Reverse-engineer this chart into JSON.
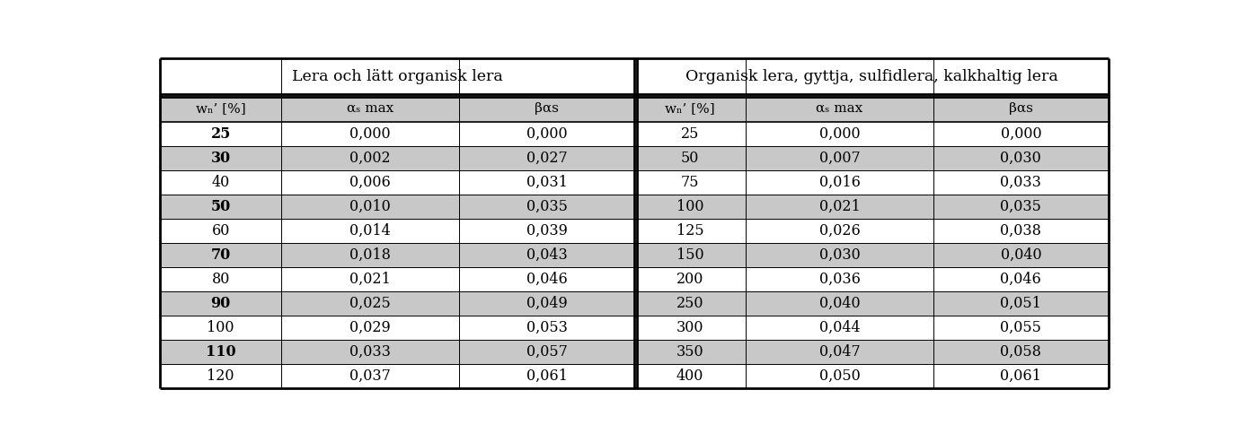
{
  "title_left": "Lera och lätt organisk lera",
  "title_right": "Organisk lera, gyttja, sulfidlera, kalkhaltig lera",
  "col_headers_left": [
    "wₙ’ [%]",
    "αₛ max",
    "βαs"
  ],
  "col_headers_right": [
    "wₙ’ [%]",
    "αₛ max",
    "βαs"
  ],
  "data_left": [
    [
      "25",
      "0,000",
      "0,000"
    ],
    [
      "30",
      "0,002",
      "0,027"
    ],
    [
      "40",
      "0,006",
      "0,031"
    ],
    [
      "50",
      "0,010",
      "0,035"
    ],
    [
      "60",
      "0,014",
      "0,039"
    ],
    [
      "70",
      "0,018",
      "0,043"
    ],
    [
      "80",
      "0,021",
      "0,046"
    ],
    [
      "90",
      "0,025",
      "0,049"
    ],
    [
      "100",
      "0,029",
      "0,053"
    ],
    [
      "110",
      "0,033",
      "0,057"
    ],
    [
      "120",
      "0,037",
      "0,061"
    ]
  ],
  "data_right": [
    [
      "25",
      "0,000",
      "0,000"
    ],
    [
      "50",
      "0,007",
      "0,030"
    ],
    [
      "75",
      "0,016",
      "0,033"
    ],
    [
      "100",
      "0,021",
      "0,035"
    ],
    [
      "125",
      "0,026",
      "0,038"
    ],
    [
      "150",
      "0,030",
      "0,040"
    ],
    [
      "200",
      "0,036",
      "0,046"
    ],
    [
      "250",
      "0,040",
      "0,051"
    ],
    [
      "300",
      "0,044",
      "0,055"
    ],
    [
      "350",
      "0,047",
      "0,058"
    ],
    [
      "400",
      "0,050",
      "0,061"
    ]
  ],
  "bold_left_col0": [
    0,
    1,
    3,
    5,
    7,
    9
  ],
  "color_white": "#ffffff",
  "color_gray": "#c8c8c8",
  "color_border": "#000000",
  "font_size_title": 12.5,
  "font_size_header": 11,
  "font_size_data": 11.5
}
